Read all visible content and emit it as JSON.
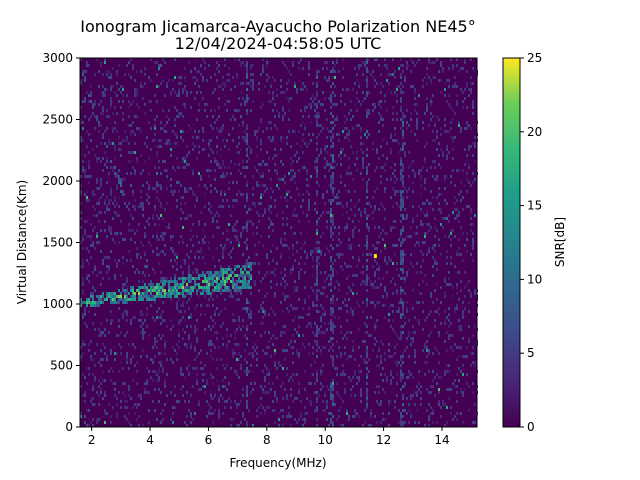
{
  "chart_data": {
    "type": "heatmap",
    "title": "Ionogram Jicamarca-Ayacucho Polarization NE45°",
    "subtitle": "12/04/2024-04:58:05 UTC",
    "xlabel": "Frequency(MHz)",
    "ylabel": "Virtual Distance(Km)",
    "xlim": [
      1.6,
      15.2
    ],
    "ylim": [
      0,
      3000
    ],
    "x_ticks": [
      "2",
      "4",
      "6",
      "8",
      "10",
      "12",
      "14"
    ],
    "y_ticks": [
      "0",
      "500",
      "1000",
      "1500",
      "2000",
      "2500",
      "3000"
    ],
    "colorbar": {
      "label": "SNR[dB]",
      "range": [
        0,
        25
      ],
      "ticks": [
        "0",
        "5",
        "10",
        "15",
        "20",
        "25"
      ],
      "colormap": "viridis"
    },
    "features": [
      {
        "name": "F-layer trace",
        "freq_range_mhz": [
          1.6,
          7.5
        ],
        "distance_km": [
          980,
          1300
        ],
        "snr_db": [
          12,
          22
        ]
      },
      {
        "name": "Vertical interference lines",
        "freqs_mhz": [
          7.3,
          9.7,
          10.2,
          11.4,
          12.6
        ],
        "snr_db": [
          3,
          8
        ]
      },
      {
        "name": "Isolated strong return",
        "freq_mhz": 11.7,
        "distance_km": 1390,
        "snr_db": 25
      }
    ]
  }
}
